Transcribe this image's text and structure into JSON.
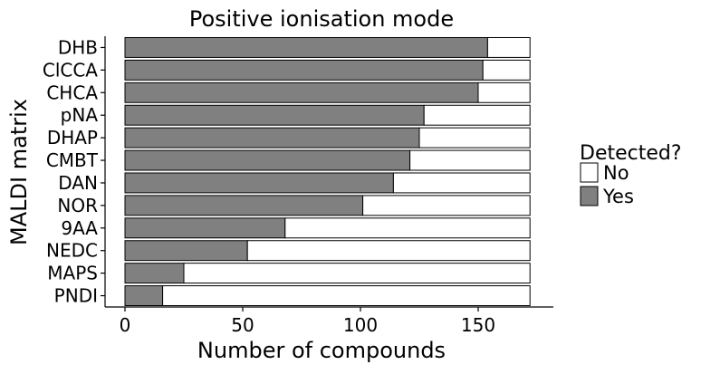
{
  "chart_data": {
    "type": "bar",
    "orientation": "horizontal",
    "stacked": true,
    "title": "Positive ionisation mode",
    "xlabel": "Number of compounds",
    "ylabel": "MALDI matrix",
    "xlim": [
      0,
      172
    ],
    "xticks": [
      0,
      50,
      100,
      150
    ],
    "categories": [
      "DHB",
      "ClCCA",
      "CHCA",
      "pNA",
      "DHAP",
      "CMBT",
      "DAN",
      "NOR",
      "9AA",
      "NEDC",
      "MAPS",
      "PNDI"
    ],
    "series": [
      {
        "name": "Yes",
        "color": "#808080",
        "values": [
          154,
          152,
          150,
          127,
          125,
          121,
          114,
          101,
          68,
          52,
          25,
          16
        ]
      },
      {
        "name": "No",
        "color": "#ffffff",
        "values": [
          18,
          20,
          22,
          45,
          47,
          51,
          58,
          71,
          104,
          120,
          147,
          156
        ]
      }
    ],
    "legend": {
      "title": "Detected?",
      "placement": "right",
      "entries": [
        "No",
        "Yes"
      ]
    },
    "grid": false
  }
}
